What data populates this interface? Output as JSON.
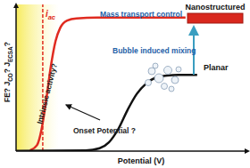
{
  "chart_data": {
    "type": "line",
    "x_label": "Potential (V)",
    "y_label": "FE? JCO? JECSA?",
    "xlim": [
      0,
      10
    ],
    "ylim": [
      0,
      10
    ],
    "tick_labels": false,
    "grid": false,
    "series": [
      {
        "name": "Nanostructured",
        "color": "#e02b20",
        "x": [
          0.6,
          0.9,
          1.1,
          1.3,
          1.5,
          1.7,
          1.9,
          2.2,
          2.6,
          3.5,
          7.3
        ],
        "values": [
          0.05,
          0.4,
          1.5,
          3.5,
          5.8,
          7.5,
          8.4,
          8.9,
          9.05,
          9.1,
          9.1
        ]
      },
      {
        "name": "Planar",
        "color": "#111111",
        "x": [
          0,
          3,
          3.6,
          4.0,
          4.4,
          4.8,
          5.2,
          5.6,
          6.0,
          6.5,
          7.0,
          7.8
        ],
        "values": [
          0.02,
          0.05,
          0.2,
          0.6,
          1.5,
          2.8,
          3.9,
          4.6,
          5.0,
          5.15,
          5.2,
          5.2
        ]
      }
    ],
    "annotations": [
      {
        "text": "iac",
        "x": 1.15
      },
      {
        "text": "Mass transport control"
      },
      {
        "text": "Bubble induced mixing"
      },
      {
        "text": "Intrinsic activity?"
      },
      {
        "text": "Onset Potential ?"
      }
    ]
  }
}
